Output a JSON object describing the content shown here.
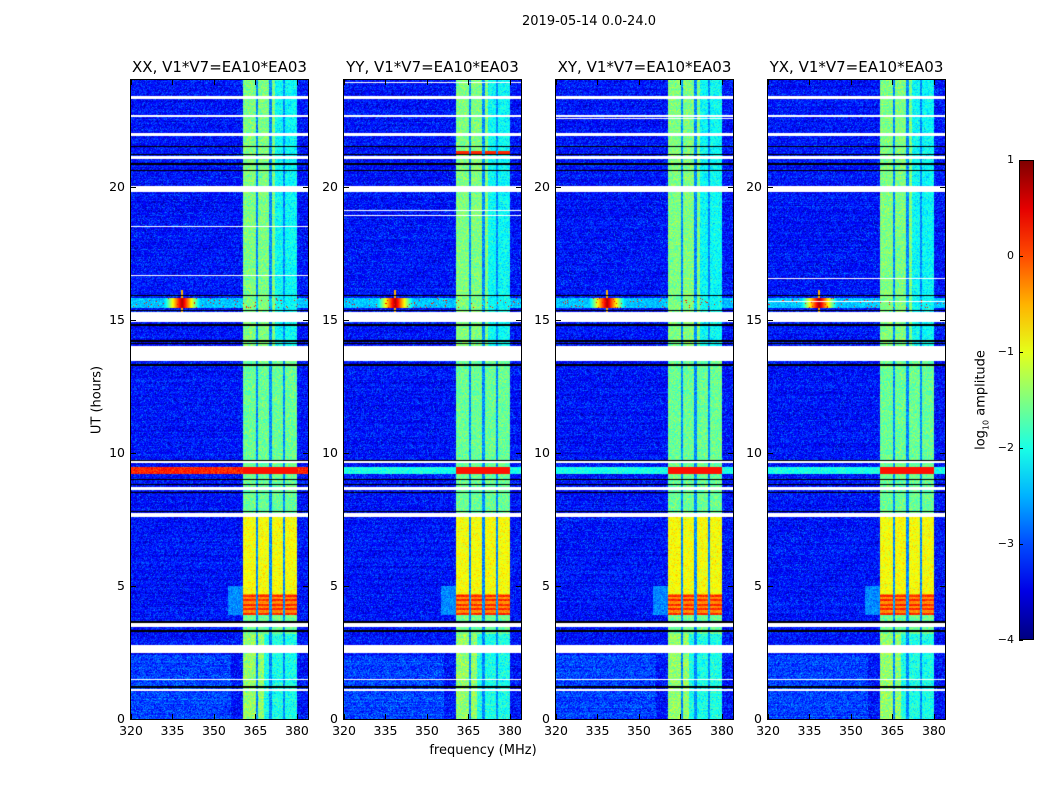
{
  "suptitle": "2019-05-14 0.0-24.0",
  "chart_data": {
    "type": "heatmap",
    "title": "2019-05-14 0.0-24.0",
    "xlabel": "frequency (MHz)",
    "ylabel": "UT (hours)",
    "xlim": [
      320,
      384
    ],
    "ylim": [
      0,
      24
    ],
    "xticks": [
      320,
      335,
      350,
      365,
      380
    ],
    "xtick_labels": [
      "320",
      "335",
      "350",
      "365",
      "380"
    ],
    "yticks": [
      0,
      5,
      10,
      15,
      20
    ],
    "ytick_labels": [
      "0",
      "5",
      "10",
      "15",
      "20"
    ],
    "colormap": "jet",
    "colorbar": {
      "label_main": "log",
      "label_sub": "10",
      "label_rest": " amplitude",
      "range": [
        -4,
        1
      ],
      "ticks": [
        1,
        0,
        -1,
        -2,
        -3,
        -4
      ],
      "tick_labels": [
        "1",
        "0",
        "−1",
        "−2",
        "−3",
        "−4"
      ]
    },
    "panels": [
      {
        "title": "XX, V1*V7=EA10*EA03",
        "pol": "XX"
      },
      {
        "title": "YY, V1*V7=EA10*EA03",
        "pol": "YY"
      },
      {
        "title": "XY, V1*V7=EA10*EA03",
        "pol": "XY"
      },
      {
        "title": "YX, V1*V7=EA10*EA03",
        "pol": "YX"
      }
    ],
    "features": {
      "background_log_amplitude": -3.3,
      "rfi_band_mhz": [
        360.4,
        380.0
      ],
      "rfi_band_log_amplitude": -1.5,
      "rfi_band_gaps_mhz": [
        365.5,
        370.5,
        375.3
      ],
      "strong_rfi_hours": [
        3.9,
        4.7
      ],
      "strong_rfi_log_amplitude": 0.2,
      "broadband_event_hours": [
        9.2,
        9.45
      ],
      "spike_event": {
        "freq_mhz": 338.5,
        "hours": [
          15.45,
          15.8
        ],
        "log_amplitude": 0.8
      },
      "flagged_hours": [
        [
          1.05,
          1.12
        ],
        [
          1.45,
          1.5
        ],
        [
          2.47,
          2.77
        ],
        [
          3.45,
          3.6
        ],
        [
          7.6,
          7.75
        ],
        [
          8.6,
          8.7
        ],
        [
          9.6,
          9.7
        ],
        [
          13.45,
          14.0
        ],
        [
          14.9,
          15.3
        ],
        [
          19.8,
          20.0
        ],
        [
          21.05,
          21.15
        ],
        [
          21.9,
          22.0
        ],
        [
          22.6,
          22.7
        ],
        [
          23.3,
          23.4
        ]
      ]
    }
  }
}
